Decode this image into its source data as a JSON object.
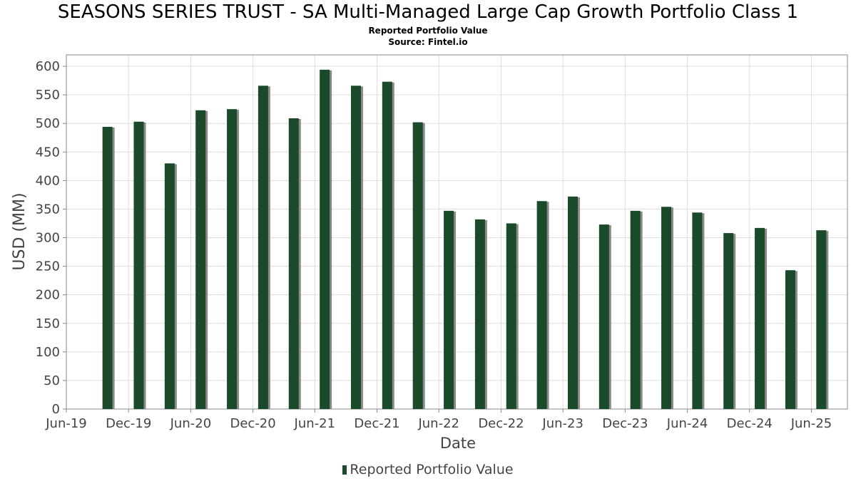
{
  "chart_data": {
    "type": "bar",
    "title": "SEASONS SERIES TRUST - SA Multi-Managed Large Cap Growth Portfolio Class 1",
    "subtitle": "Reported Portfolio Value",
    "source": "Source: Fintel.io",
    "xlabel": "Date",
    "ylabel": "USD (MM)",
    "ylim": [
      0,
      620
    ],
    "yticks": [
      0,
      50,
      100,
      150,
      200,
      250,
      300,
      350,
      400,
      450,
      500,
      550,
      600
    ],
    "xlim": [
      "2019-06-01",
      "2025-09-15"
    ],
    "xticks": [
      {
        "label": "Jun-19",
        "date": "2019-06-01"
      },
      {
        "label": "Dec-19",
        "date": "2019-12-01"
      },
      {
        "label": "Jun-20",
        "date": "2020-06-01"
      },
      {
        "label": "Dec-20",
        "date": "2020-12-01"
      },
      {
        "label": "Jun-21",
        "date": "2021-06-01"
      },
      {
        "label": "Dec-21",
        "date": "2021-12-01"
      },
      {
        "label": "Jun-22",
        "date": "2022-06-01"
      },
      {
        "label": "Dec-22",
        "date": "2022-12-01"
      },
      {
        "label": "Jun-23",
        "date": "2023-06-01"
      },
      {
        "label": "Dec-23",
        "date": "2023-12-01"
      },
      {
        "label": "Jun-24",
        "date": "2024-06-01"
      },
      {
        "label": "Dec-24",
        "date": "2024-12-01"
      },
      {
        "label": "Jun-25",
        "date": "2025-06-01"
      }
    ],
    "grid": true,
    "legend_position": "bottom-center",
    "series": [
      {
        "name": "Reported Portfolio Value",
        "color": "#1a4a2a",
        "shadow_color": "#8a8a8a",
        "x": [
          "2019-09-30",
          "2019-12-31",
          "2020-03-31",
          "2020-06-30",
          "2020-09-30",
          "2020-12-31",
          "2021-03-31",
          "2021-06-30",
          "2021-09-30",
          "2021-12-31",
          "2022-03-31",
          "2022-06-30",
          "2022-09-30",
          "2022-12-31",
          "2023-03-31",
          "2023-06-30",
          "2023-09-30",
          "2023-12-31",
          "2024-03-31",
          "2024-06-30",
          "2024-09-30",
          "2024-12-31",
          "2025-03-31",
          "2025-06-30"
        ],
        "values": [
          494,
          503,
          430,
          523,
          525,
          566,
          509,
          594,
          566,
          573,
          502,
          347,
          332,
          325,
          364,
          372,
          323,
          347,
          354,
          344,
          308,
          317,
          243,
          313
        ]
      }
    ]
  }
}
